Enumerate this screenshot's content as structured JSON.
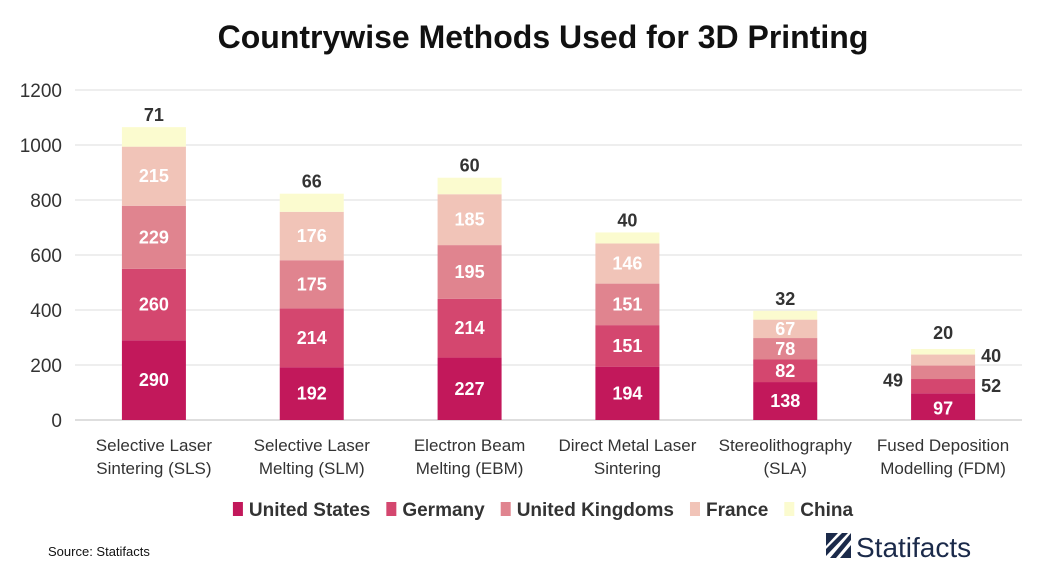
{
  "chart_data": {
    "type": "bar",
    "stacked": true,
    "title": "Countrywise Methods Used for 3D Printing",
    "xlabel": "",
    "ylabel": "",
    "ylim": [
      0,
      1200
    ],
    "yticks": [
      0,
      200,
      400,
      600,
      800,
      1000,
      1200
    ],
    "grid": true,
    "legend_position": "bottom",
    "categories": [
      [
        "Selective Laser",
        "Sintering (SLS)"
      ],
      [
        "Selective Laser",
        "Melting (SLM)"
      ],
      [
        "Electron Beam",
        "Melting (EBM)"
      ],
      [
        "Direct Metal Laser",
        "Sintering"
      ],
      [
        "Stereolithography",
        "(SLA)"
      ],
      [
        "Fused Deposition",
        "Modelling (FDM)"
      ]
    ],
    "series": [
      {
        "name": "United States",
        "color": "#c2185b",
        "label_color": "#ffffff",
        "values": [
          290,
          192,
          227,
          194,
          138,
          97
        ]
      },
      {
        "name": "Germany",
        "color": "#d4476f",
        "label_color": "#ffffff",
        "values": [
          260,
          214,
          214,
          151,
          82,
          52
        ]
      },
      {
        "name": "United Kingdoms",
        "color": "#e0848f",
        "label_color": "#ffffff",
        "values": [
          229,
          175,
          195,
          151,
          78,
          49
        ]
      },
      {
        "name": "France",
        "color": "#f1c4b8",
        "label_color": "#ffffff",
        "values": [
          215,
          176,
          185,
          146,
          67,
          40
        ]
      },
      {
        "name": "China",
        "color": "#fbfbcf",
        "label_color": "#333333",
        "values": [
          71,
          66,
          60,
          40,
          32,
          20
        ]
      }
    ]
  },
  "footer": {
    "source": "Source: Statifacts",
    "brand": "Statifacts"
  }
}
